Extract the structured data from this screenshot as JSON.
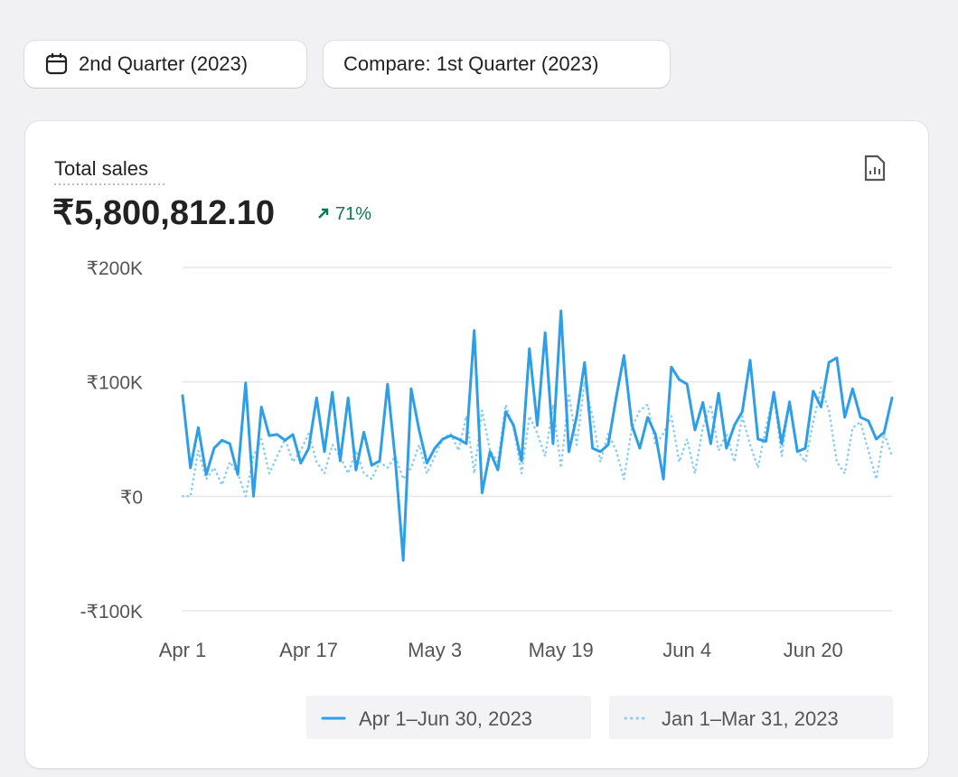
{
  "toolbar": {
    "period_button": "2nd Quarter (2023)",
    "compare_button": "Compare: 1st Quarter (2023)"
  },
  "metric": {
    "label": "Total sales",
    "value": "₹5,800,812.10",
    "change": "71%"
  },
  "chart_data": {
    "type": "line",
    "categories": [
      "Apr 1",
      null,
      null,
      null,
      null,
      null,
      null,
      null,
      null,
      null,
      null,
      null,
      null,
      null,
      null,
      null,
      "Apr 17",
      null,
      null,
      null,
      null,
      null,
      null,
      null,
      null,
      null,
      null,
      null,
      null,
      null,
      null,
      null,
      "May 3",
      null,
      null,
      null,
      null,
      null,
      null,
      null,
      null,
      null,
      null,
      null,
      null,
      null,
      null,
      null,
      "May 19",
      null,
      null,
      null,
      null,
      null,
      null,
      null,
      null,
      null,
      null,
      null,
      null,
      null,
      null,
      null,
      "Jun 4",
      null,
      null,
      null,
      null,
      null,
      null,
      null,
      null,
      null,
      null,
      null,
      null,
      null,
      null,
      null,
      "Jun 20",
      null,
      null,
      null,
      null,
      null,
      null,
      null,
      null,
      null,
      null
    ],
    "series": [
      {
        "name": "Apr 1–Jun 30, 2023",
        "color": "#2e9fe6",
        "style": "solid",
        "values": [
          88000,
          25000,
          60000,
          19000,
          42000,
          49000,
          46000,
          19000,
          99000,
          0,
          78000,
          53000,
          54000,
          49000,
          54000,
          29000,
          42000,
          86000,
          39000,
          91000,
          31000,
          86000,
          23000,
          56000,
          27000,
          31000,
          98000,
          31000,
          -56000,
          94000,
          58000,
          29000,
          42000,
          50000,
          53000,
          50000,
          46000,
          145000,
          3000,
          39000,
          23000,
          74000,
          62000,
          31000,
          129000,
          62000,
          143000,
          46000,
          162000,
          39000,
          70000,
          117000,
          42000,
          39000,
          45000,
          86000,
          123000,
          62000,
          42000,
          69000,
          54000,
          15000,
          113000,
          102000,
          98000,
          58000,
          82000,
          46000,
          90000,
          42000,
          62000,
          74000,
          119000,
          50000,
          48000,
          91000,
          46000,
          82000,
          39000,
          42000,
          92000,
          78000,
          117000,
          121000,
          69000,
          94000,
          69000,
          66000,
          50000,
          56000,
          86000
        ]
      },
      {
        "name": "Jan 1–Mar 31, 2023",
        "color": "#8ccdf3",
        "style": "dotted",
        "values": [
          0,
          0,
          40000,
          15000,
          25000,
          10000,
          30000,
          20000,
          0,
          35000,
          50000,
          20000,
          35000,
          50000,
          30000,
          40000,
          55000,
          30000,
          20000,
          45000,
          35000,
          20000,
          40000,
          20000,
          15000,
          30000,
          25000,
          35000,
          15000,
          25000,
          45000,
          20000,
          35000,
          50000,
          55000,
          40000,
          70000,
          20000,
          75000,
          40000,
          30000,
          80000,
          60000,
          20000,
          70000,
          55000,
          35000,
          80000,
          25000,
          90000,
          45000,
          100000,
          70000,
          30000,
          55000,
          40000,
          15000,
          60000,
          75000,
          80000,
          45000,
          55000,
          70000,
          30000,
          50000,
          20000,
          60000,
          80000,
          40000,
          55000,
          30000,
          70000,
          45000,
          25000,
          60000,
          90000,
          35000,
          85000,
          40000,
          30000,
          65000,
          95000,
          75000,
          30000,
          20000,
          60000,
          65000,
          40000,
          15000,
          55000,
          35000
        ]
      }
    ],
    "ylim": [
      -100000,
      200000
    ],
    "yticks": [
      {
        "value": 200000,
        "label": "₹200K"
      },
      {
        "value": 100000,
        "label": "₹100K"
      },
      {
        "value": 0,
        "label": "₹0"
      },
      {
        "value": -100000,
        "label": "-₹100K"
      }
    ],
    "grid": true
  }
}
